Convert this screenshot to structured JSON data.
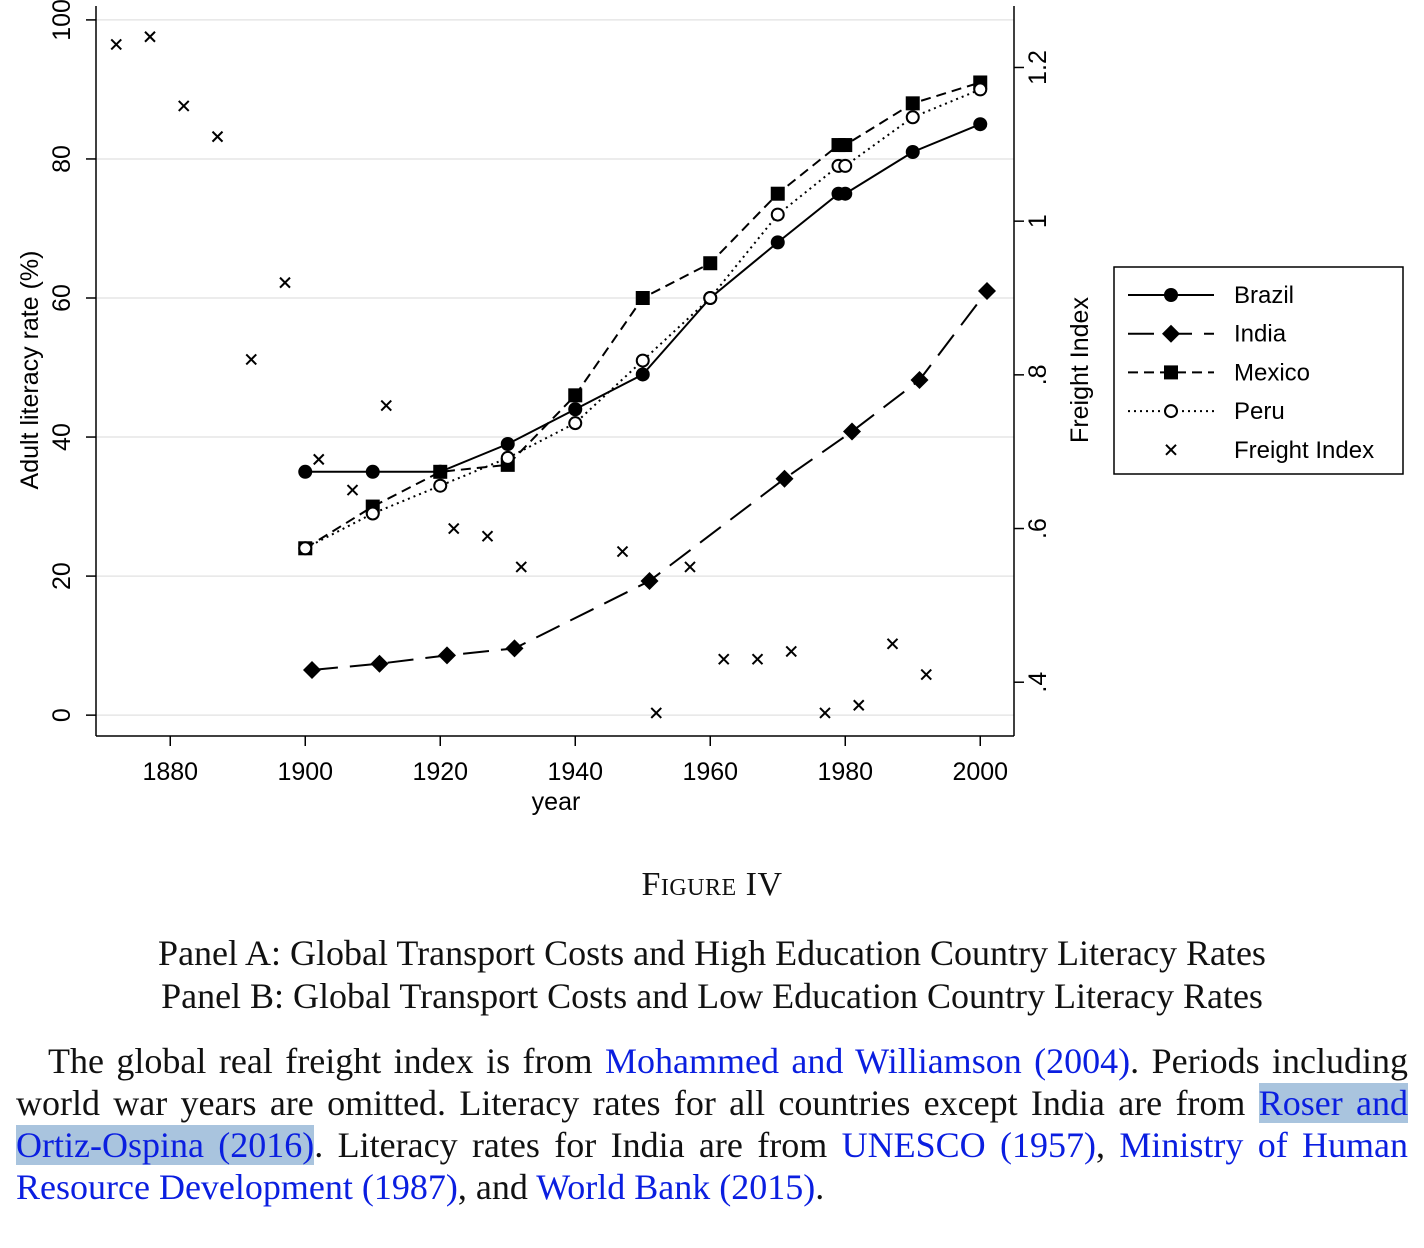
{
  "chart_data": {
    "type": "line",
    "xlabel": "year",
    "ylabel": "Adult literacy rate (%)",
    "y2label": "Freight Index",
    "xlim": [
      1869,
      2005
    ],
    "ylim": [
      -3,
      102
    ],
    "y2lim": [
      0.33,
      1.28
    ],
    "xticks": [
      1880,
      1900,
      1920,
      1940,
      1960,
      1980,
      2000
    ],
    "yticks": [
      0,
      20,
      40,
      60,
      80,
      100
    ],
    "y2ticks": [
      0.4,
      0.6,
      0.8,
      1.0,
      1.2
    ],
    "y2ticklabels": [
      ".4",
      ".6",
      ".8",
      "1",
      "1.2"
    ],
    "grid": "horizontal",
    "legend_position": "right",
    "series": [
      {
        "name": "Brazil",
        "axis": "left",
        "marker": "circle",
        "line": "solid",
        "x": [
          1900,
          1910,
          1920,
          1930,
          1940,
          1950,
          1960,
          1970,
          1979,
          1980,
          1990,
          2000
        ],
        "y": [
          35,
          35,
          35,
          39,
          44,
          49,
          60,
          68,
          75,
          75,
          81,
          85
        ]
      },
      {
        "name": "India",
        "axis": "left",
        "marker": "diamond",
        "line": "longdash",
        "x": [
          1901,
          1911,
          1921,
          1931,
          1951,
          1971,
          1981,
          1991,
          2001
        ],
        "y": [
          6.5,
          7.4,
          8.6,
          9.6,
          19.3,
          34.0,
          40.8,
          48.2,
          61.0
        ]
      },
      {
        "name": "Mexico",
        "axis": "left",
        "marker": "square",
        "line": "dash",
        "x": [
          1900,
          1910,
          1920,
          1930,
          1940,
          1950,
          1960,
          1970,
          1979,
          1980,
          1990,
          2000
        ],
        "y": [
          24,
          30,
          35,
          36,
          46,
          60,
          65,
          75,
          82,
          82,
          88,
          91
        ]
      },
      {
        "name": "Peru",
        "axis": "left",
        "marker": "hollow-circle",
        "line": "dot",
        "x": [
          1900,
          1910,
          1920,
          1930,
          1940,
          1950,
          1960,
          1970,
          1979,
          1980,
          1990,
          2000
        ],
        "y": [
          24,
          29,
          33,
          37,
          42,
          51,
          60,
          72,
          79,
          79,
          86,
          90
        ]
      },
      {
        "name": "Freight Index",
        "axis": "right",
        "marker": "x",
        "line": "none",
        "x": [
          1872,
          1877,
          1882,
          1887,
          1892,
          1897,
          1902,
          1907,
          1912,
          1922,
          1927,
          1932,
          1947,
          1952,
          1957,
          1962,
          1967,
          1972,
          1977,
          1982,
          1987,
          1992
        ],
        "y": [
          1.23,
          1.24,
          1.15,
          1.11,
          0.82,
          0.92,
          0.69,
          0.65,
          0.76,
          0.6,
          0.59,
          0.55,
          0.57,
          0.36,
          0.55,
          0.43,
          0.43,
          0.44,
          0.36,
          0.37,
          0.45,
          0.41
        ]
      }
    ]
  },
  "caption": {
    "figure_title": "Figure IV",
    "panel_a": "Panel A: Global Transport Costs and High Education Country Literacy Rates",
    "panel_b": "Panel B: Global Transport Costs and Low Education Country Literacy Rates",
    "note_1": "The global real freight index is from ",
    "link_1": "Mohammed and Williamson (2004)",
    "note_2": ". Periods including world war years are omitted. Literacy rates for all countries except India are from ",
    "link_2": "Roser and Ortiz-Ospina (2016)",
    "note_3": ". Literacy rates for India are from ",
    "link_3": "UNESCO (1957)",
    "note_4": ", ",
    "link_4": "Ministry of Human Resource Development (1987)",
    "note_5": ", and ",
    "link_5": "World Bank (2015)",
    "note_6": "."
  }
}
